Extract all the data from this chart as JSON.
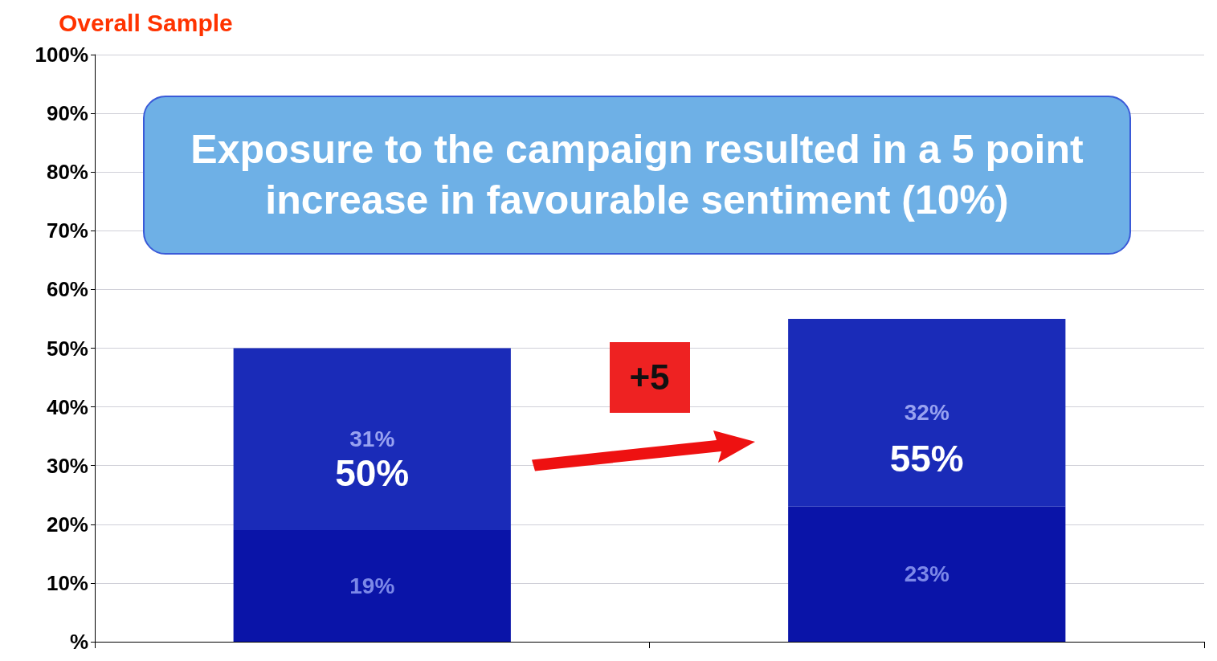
{
  "chart_data": {
    "type": "bar",
    "title": "Overall Sample",
    "categories": [
      null,
      null
    ],
    "stacked": true,
    "series": [
      {
        "color": "#0a14a8",
        "values": [
          19,
          23
        ],
        "value_labels": [
          "19%",
          "23%"
        ]
      },
      {
        "color": "#1a2bb8",
        "values": [
          31,
          32
        ],
        "value_labels": [
          "31%",
          "32%"
        ]
      }
    ],
    "totals": [
      "50%",
      "55%"
    ],
    "ylim": [
      0,
      100
    ],
    "yticks": [
      {
        "value": 0,
        "label": "%"
      },
      {
        "value": 10,
        "label": "10%"
      },
      {
        "value": 20,
        "label": "20%"
      },
      {
        "value": 30,
        "label": "30%"
      },
      {
        "value": 40,
        "label": "40%"
      },
      {
        "value": 50,
        "label": "50%"
      },
      {
        "value": 60,
        "label": "60%"
      },
      {
        "value": 70,
        "label": "70%"
      },
      {
        "value": 80,
        "label": "80%"
      },
      {
        "value": 90,
        "label": "90%"
      },
      {
        "value": 100,
        "label": "100%"
      }
    ],
    "grid": "y",
    "annotations": [
      "Exposure to the campaign resulted in a 5 point increase in favourable sentiment (10%)",
      "+5"
    ]
  }
}
